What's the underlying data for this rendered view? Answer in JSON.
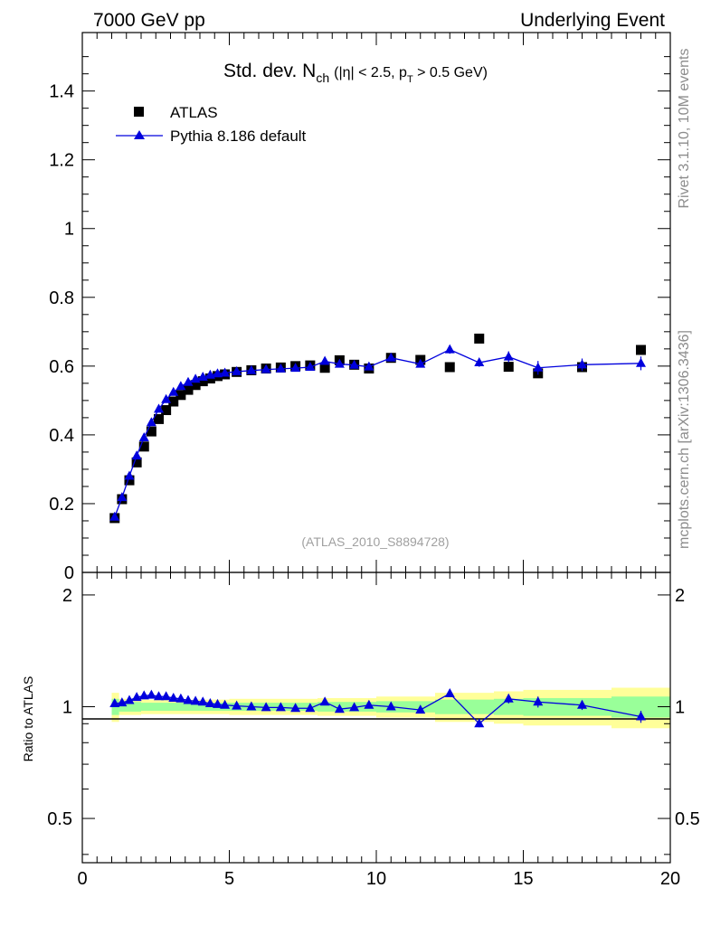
{
  "header": {
    "left": "7000 GeV pp",
    "right": "Underlying Event"
  },
  "side_text": {
    "upper": "Rivet 3.1.10,  10M events",
    "lower": "mcplots.cern.ch [arXiv:1306.3436]"
  },
  "colors": {
    "data": "#000000",
    "mc": "#0000dd",
    "band_inner": "#99ff99",
    "band_outer": "#ffff99"
  },
  "chart_data": [
    {
      "type": "scatter",
      "title": {
        "prefix": "Std. dev. N",
        "sub": "ch",
        "cond_a": "(|η| < 2.5, p",
        "cond_sub": "T",
        "cond_b": " > 0.5 GeV)"
      },
      "analysis_id": "(ATLAS_2010_S8894728)",
      "xlim": [
        0,
        20
      ],
      "ylim": [
        0,
        1.57
      ],
      "yticks": [
        0,
        0.2,
        0.4,
        0.6,
        0.8,
        1,
        1.2,
        1.4
      ],
      "ytick_labels": [
        "0",
        "0.2",
        "0.4",
        "0.6",
        "0.8",
        "1",
        "1.2",
        "1.4"
      ],
      "legend": {
        "placement": "top-left",
        "data_label": "ATLAS",
        "mc_label": "Pythia 8.186 default"
      },
      "series": [
        {
          "name": "ATLAS",
          "marker": "square",
          "x": [
            1.1,
            1.35,
            1.6,
            1.85,
            2.1,
            2.35,
            2.6,
            2.85,
            3.1,
            3.35,
            3.6,
            3.85,
            4.1,
            4.35,
            4.6,
            4.85,
            5.25,
            5.75,
            6.25,
            6.75,
            7.25,
            7.75,
            8.25,
            8.75,
            9.25,
            9.75,
            10.5,
            11.5,
            12.5,
            13.5,
            14.5,
            15.5,
            17.0,
            19.0
          ],
          "y": [
            0.158,
            0.213,
            0.268,
            0.32,
            0.366,
            0.41,
            0.446,
            0.472,
            0.497,
            0.516,
            0.531,
            0.545,
            0.556,
            0.564,
            0.571,
            0.576,
            0.583,
            0.588,
            0.593,
            0.596,
            0.6,
            0.602,
            0.595,
            0.617,
            0.604,
            0.593,
            0.624,
            0.618,
            0.597,
            0.68,
            0.598,
            0.579,
            0.597,
            0.647
          ]
        },
        {
          "name": "Pythia 8.186 default",
          "marker": "triangle",
          "x": [
            1.1,
            1.35,
            1.6,
            1.85,
            2.1,
            2.35,
            2.6,
            2.85,
            3.1,
            3.35,
            3.6,
            3.85,
            4.1,
            4.35,
            4.6,
            4.85,
            5.25,
            5.75,
            6.25,
            6.75,
            7.25,
            7.75,
            8.25,
            8.75,
            9.25,
            9.75,
            10.5,
            11.5,
            12.5,
            13.5,
            14.5,
            15.5,
            17.0,
            19.0
          ],
          "y": [
            0.161,
            0.218,
            0.28,
            0.339,
            0.392,
            0.436,
            0.475,
            0.503,
            0.524,
            0.541,
            0.553,
            0.562,
            0.568,
            0.574,
            0.578,
            0.58,
            0.584,
            0.587,
            0.59,
            0.592,
            0.594,
            0.597,
            0.614,
            0.606,
            0.603,
            0.598,
            0.624,
            0.606,
            0.648,
            0.61,
            0.627,
            0.595,
            0.604,
            0.608
          ],
          "yerr": [
            0.002,
            0.002,
            0.002,
            0.002,
            0.002,
            0.002,
            0.002,
            0.002,
            0.002,
            0.002,
            0.002,
            0.002,
            0.002,
            0.002,
            0.002,
            0.002,
            0.003,
            0.003,
            0.003,
            0.003,
            0.003,
            0.004,
            0.005,
            0.005,
            0.005,
            0.006,
            0.007,
            0.009,
            0.012,
            0.012,
            0.016,
            0.02,
            0.018,
            0.02
          ]
        }
      ]
    },
    {
      "type": "line",
      "ylabel": "Ratio to ATLAS",
      "xlabel": "",
      "xlim": [
        0,
        20
      ],
      "ylim": [
        0.38,
        2.3
      ],
      "yscale": "log",
      "xticks": [
        0,
        5,
        10,
        15,
        20
      ],
      "xtick_labels": [
        "0",
        "5",
        "10",
        "15",
        "20"
      ],
      "yticks": [
        0.5,
        1,
        2
      ],
      "ytick_labels": [
        "0.5",
        "1",
        "2"
      ],
      "bands": [
        {
          "x0": 1.0,
          "x1": 1.25,
          "inner": 0.05,
          "outer": 0.09
        },
        {
          "x0": 1.25,
          "x1": 2.0,
          "inner": 0.03,
          "outer": 0.05
        },
        {
          "x0": 2.0,
          "x1": 5.0,
          "inner": 0.025,
          "outer": 0.045
        },
        {
          "x0": 5.0,
          "x1": 8.0,
          "inner": 0.025,
          "outer": 0.05
        },
        {
          "x0": 8.0,
          "x1": 10.0,
          "inner": 0.03,
          "outer": 0.055
        },
        {
          "x0": 10.0,
          "x1": 12.0,
          "inner": 0.035,
          "outer": 0.065
        },
        {
          "x0": 12.0,
          "x1": 14.0,
          "inner": 0.045,
          "outer": 0.09
        },
        {
          "x0": 14.0,
          "x1": 15.0,
          "inner": 0.05,
          "outer": 0.1
        },
        {
          "x0": 15.0,
          "x1": 18.0,
          "inner": 0.055,
          "outer": 0.11
        },
        {
          "x0": 18.0,
          "x1": 20.0,
          "inner": 0.065,
          "outer": 0.125
        }
      ],
      "series": [
        {
          "name": "Pythia 8.186 default / ATLAS",
          "x": [
            1.1,
            1.35,
            1.6,
            1.85,
            2.1,
            2.35,
            2.6,
            2.85,
            3.1,
            3.35,
            3.6,
            3.85,
            4.1,
            4.35,
            4.6,
            4.85,
            5.25,
            5.75,
            6.25,
            6.75,
            7.25,
            7.75,
            8.25,
            8.75,
            9.25,
            9.75,
            10.5,
            11.5,
            12.5,
            13.5,
            14.5,
            15.5,
            17.0,
            19.0
          ],
          "y": [
            1.02,
            1.025,
            1.04,
            1.06,
            1.07,
            1.075,
            1.065,
            1.065,
            1.055,
            1.05,
            1.04,
            1.035,
            1.03,
            1.02,
            1.015,
            1.01,
            1.005,
            1.0,
            0.995,
            0.995,
            0.99,
            0.99,
            1.03,
            0.985,
            0.995,
            1.01,
            1.0,
            0.98,
            1.085,
            0.9,
            1.05,
            1.03,
            1.01,
            0.94
          ],
          "yerr": [
            0.01,
            0.01,
            0.01,
            0.01,
            0.01,
            0.01,
            0.01,
            0.01,
            0.01,
            0.01,
            0.01,
            0.01,
            0.01,
            0.01,
            0.01,
            0.01,
            0.01,
            0.01,
            0.01,
            0.01,
            0.01,
            0.01,
            0.015,
            0.015,
            0.015,
            0.015,
            0.015,
            0.015,
            0.02,
            0.02,
            0.03,
            0.035,
            0.03,
            0.035
          ]
        }
      ]
    }
  ]
}
